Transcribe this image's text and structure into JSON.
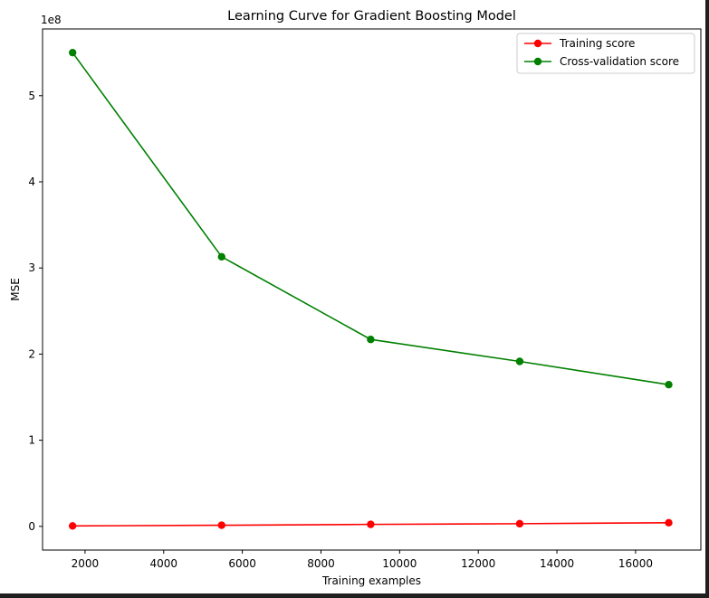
{
  "chart_data": {
    "type": "line",
    "title": "Learning Curve for Gradient Boosting Model",
    "xlabel": "Training examples",
    "ylabel": "MSE",
    "y_offset_label": "1e8",
    "x": [
      1684,
      5474,
      9264,
      13053,
      16843
    ],
    "xlim": [
      920,
      17660
    ],
    "ylim": [
      -27500000,
      577500000
    ],
    "x_ticks": [
      2000,
      4000,
      6000,
      8000,
      10000,
      12000,
      14000,
      16000
    ],
    "x_tick_labels": [
      "2000",
      "4000",
      "6000",
      "8000",
      "10000",
      "12000",
      "14000",
      "16000"
    ],
    "y_ticks": [
      0,
      100000000,
      200000000,
      300000000,
      400000000,
      500000000
    ],
    "y_tick_labels": [
      "0",
      "1",
      "2",
      "3",
      "4",
      "5"
    ],
    "grid": false,
    "legend_position": "top-right",
    "series": [
      {
        "name": "Training score",
        "color": "#ff0000",
        "marker": "circle",
        "values": [
          500000,
          1300000,
          2300000,
          3100000,
          4200000
        ]
      },
      {
        "name": "Cross-validation score",
        "color": "#008000",
        "marker": "circle",
        "values": [
          550000000,
          313000000,
          217000000,
          191500000,
          164500000
        ]
      }
    ]
  }
}
